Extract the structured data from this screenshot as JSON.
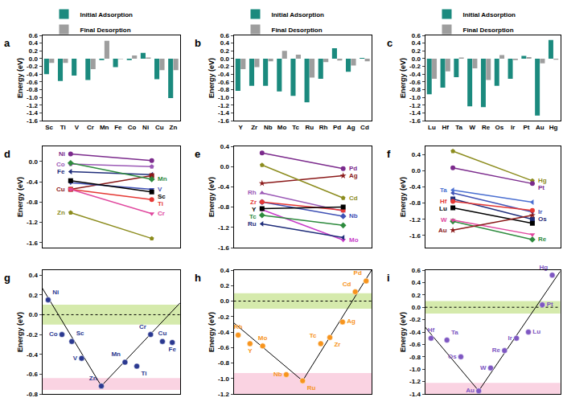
{
  "chart_data": [
    {
      "panel": "a",
      "type": "bar",
      "ylabel": "Energy (eV)",
      "legend": "top left",
      "categories": [
        "Sc",
        "Ti",
        "V",
        "Cr",
        "Mn",
        "Fe",
        "Co",
        "Ni",
        "Cu",
        "Zn"
      ],
      "series": [
        {
          "name": "Initial Adsorption",
          "color": "#1b8a7e",
          "values": [
            -0.4,
            -0.58,
            -0.44,
            -0.55,
            -0.04,
            -0.22,
            -0.04,
            0.15,
            -0.53,
            -1.02
          ]
        },
        {
          "name": "Final Desorption",
          "color": "#9e9e9e",
          "values": [
            -0.11,
            -0.11,
            0.0,
            -0.27,
            0.46,
            -0.01,
            0.08,
            0.03,
            -0.3,
            -0.3
          ]
        }
      ],
      "ylim": [
        -1.6,
        0.6
      ],
      "yticks": [
        -1.6,
        -1.4,
        -1.2,
        {
          "value": -1,
          "label": "-1.0"
        },
        -0.8,
        -0.6,
        -0.4,
        -0.2,
        {
          "value": 0,
          "label": "0.0"
        },
        0.2,
        0.4,
        0.6
      ]
    },
    {
      "panel": "b",
      "type": "bar",
      "ylabel": "Energy (eV)",
      "legend": "top left",
      "categories": [
        "Y",
        "Zr",
        "Nb",
        "Mo",
        "Tc",
        "Ru",
        "Rh",
        "Pd",
        "Ag",
        "Cd"
      ],
      "series": [
        {
          "name": "Initial Adsorption",
          "color": "#1b8a7e",
          "values": [
            -0.83,
            -0.7,
            -0.7,
            -0.85,
            -0.96,
            -1.13,
            -0.52,
            0.27,
            -0.34,
            0.02
          ]
        },
        {
          "name": "Final Desorption",
          "color": "#9e9e9e",
          "values": [
            -0.27,
            -0.22,
            -0.07,
            0.2,
            0.1,
            -0.49,
            -0.09,
            -0.05,
            -0.18,
            -0.07
          ]
        }
      ],
      "ylim": [
        -1.6,
        0.6
      ],
      "yticks": [
        -1.6,
        -1.4,
        -1.2,
        {
          "value": -1,
          "label": "-1.0"
        },
        -0.8,
        -0.6,
        -0.4,
        -0.2,
        {
          "value": 0,
          "label": "0.0"
        },
        0.2,
        0.4,
        0.6
      ]
    },
    {
      "panel": "c",
      "type": "bar",
      "ylabel": "Energy (eV)",
      "legend": "top left",
      "categories": [
        "Lu",
        "Hf",
        "Ta",
        "W",
        "Re",
        "Os",
        "Ir",
        "Pt",
        "Au",
        "Hg"
      ],
      "series": [
        {
          "name": "Initial Adsorption",
          "color": "#1b8a7e",
          "values": [
            -0.92,
            -0.75,
            -0.48,
            -1.23,
            -1.25,
            -0.7,
            -0.52,
            0.07,
            -1.47,
            0.48
          ]
        },
        {
          "name": "Final Desorption",
          "color": "#9e9e9e",
          "values": [
            -0.52,
            -0.33,
            0.03,
            -0.25,
            -0.55,
            0.09,
            -0.04,
            0.04,
            -0.12,
            -0.03
          ]
        }
      ],
      "ylim": [
        -1.6,
        0.6
      ],
      "yticks": [
        -1.6,
        -1.4,
        -1.2,
        {
          "value": -1,
          "label": "-1.0"
        },
        -0.8,
        -0.6,
        -0.4,
        -0.2,
        {
          "value": 0,
          "label": "0.0"
        },
        0.2,
        0.4,
        0.6
      ]
    },
    {
      "panel": "d",
      "type": "line",
      "ylabel": "Energy (eV)",
      "tick_labels": "y",
      "x": [
        0,
        1
      ],
      "xlim": [
        -0.35,
        1.35
      ],
      "ylim": [
        -1.7,
        0.3
      ],
      "yticks": [
        -1.6,
        -1.2,
        -0.8,
        -0.4,
        {
          "value": 0,
          "label": "0.0"
        }
      ],
      "series": [
        {
          "name": "Ni",
          "color": "#7b2a8c",
          "marker": "circle",
          "values": [
            0.15,
            0.02
          ]
        },
        {
          "name": "Co",
          "color": "#9b59b6",
          "marker": "pentagon",
          "values": [
            -0.05,
            -0.1
          ]
        },
        {
          "name": "Fe",
          "color": "#1f2d7a",
          "marker": "triangle-left",
          "values": [
            -0.2,
            -0.26
          ]
        },
        {
          "name": "Cu",
          "color": "#8b1a1a",
          "marker": "square",
          "values": [
            -0.55,
            -0.28
          ]
        },
        {
          "name": "Zn",
          "color": "#8c8c1e",
          "marker": "pentagon",
          "values": [
            -1.01,
            -1.52
          ]
        },
        {
          "name": "Mn",
          "color": "#2e8b3e",
          "marker": "diamond",
          "values": [
            -0.03,
            -0.35
          ]
        },
        {
          "name": "V",
          "color": "#3f51b5",
          "marker": "triangle-down",
          "values": [
            -0.42,
            -0.55
          ]
        },
        {
          "name": "Sc",
          "color": "#000000",
          "marker": "square",
          "values": [
            -0.38,
            -0.6
          ]
        },
        {
          "name": "Ti",
          "color": "#e53935",
          "marker": "circle",
          "values": [
            -0.55,
            -0.75
          ]
        },
        {
          "name": "Cr",
          "color": "#e0479e",
          "marker": "triangle-down",
          "values": [
            -0.55,
            -1.03
          ]
        }
      ]
    },
    {
      "panel": "e",
      "type": "line",
      "ylabel": "Energy (eV)",
      "tick_labels": "y",
      "x": [
        0,
        1
      ],
      "xlim": [
        -0.35,
        1.35
      ],
      "ylim": [
        -1.6,
        0.4
      ],
      "yticks": [
        -1.6,
        -1.2,
        -0.8,
        -0.4,
        {
          "value": 0,
          "label": "0.0"
        },
        0.4
      ],
      "series": [
        {
          "name": "Pd",
          "color": "#7b2a8c",
          "marker": "circle",
          "values": [
            0.27,
            -0.04
          ]
        },
        {
          "name": "Ag",
          "color": "#8b1a1a",
          "marker": "star",
          "values": [
            -0.33,
            -0.18
          ]
        },
        {
          "name": "Cd",
          "color": "#8c8c1e",
          "marker": "pentagon",
          "values": [
            0.03,
            -0.62
          ]
        },
        {
          "name": "Nb",
          "color": "#3f51b5",
          "marker": "diamond",
          "values": [
            -0.7,
            -0.98
          ]
        },
        {
          "name": "Mo",
          "color": "#c83cc8",
          "marker": "triangle-down",
          "values": [
            -0.85,
            -1.45
          ]
        },
        {
          "name": "Rh",
          "color": "#9b59b6",
          "marker": "triangle-up",
          "values": [
            -0.52,
            -0.88
          ]
        },
        {
          "name": "Zr",
          "color": "#e53935",
          "marker": "circle",
          "values": [
            -0.7,
            -0.86
          ]
        },
        {
          "name": "Y",
          "color": "#000000",
          "marker": "square",
          "values": [
            -0.83,
            -0.8
          ]
        },
        {
          "name": "Tc",
          "color": "#2e8b3e",
          "marker": "diamond",
          "values": [
            -0.96,
            -1.16
          ]
        },
        {
          "name": "Ru",
          "color": "#1f2d7a",
          "marker": "triangle-left",
          "values": [
            -1.13,
            -1.4
          ]
        }
      ]
    },
    {
      "panel": "f",
      "type": "line",
      "ylabel": "Energy (eV)",
      "tick_labels": "y",
      "x": [
        0,
        1
      ],
      "xlim": [
        -0.35,
        1.35
      ],
      "ylim": [
        -1.9,
        0.6
      ],
      "yticks": [
        -1.6,
        -1.2,
        -0.8,
        -0.4,
        {
          "value": 0,
          "label": "0.0"
        },
        0.4
      ],
      "series": [
        {
          "name": "Hg",
          "color": "#8c8c1e",
          "marker": "pentagon",
          "values": [
            0.48,
            -0.25
          ]
        },
        {
          "name": "Pt",
          "color": "#7b2a8c",
          "marker": "circle",
          "values": [
            0.07,
            -0.32
          ]
        },
        {
          "name": "Ir",
          "color": "#3f51b5",
          "marker": "triangle-left",
          "values": [
            -0.55,
            -1.02
          ]
        },
        {
          "name": "Os",
          "color": "#1f2d7a",
          "marker": "square",
          "values": [
            -0.7,
            -1.2
          ]
        },
        {
          "name": "Re",
          "color": "#2e8b3e",
          "marker": "diamond",
          "values": [
            -1.25,
            -1.7
          ]
        },
        {
          "name": "Ta",
          "color": "#4a6fd1",
          "marker": "triangle-left",
          "values": [
            -0.48,
            -0.78
          ]
        },
        {
          "name": "Hf",
          "color": "#e53935",
          "marker": "circle",
          "values": [
            -0.76,
            -0.98
          ]
        },
        {
          "name": "Lu",
          "color": "#000000",
          "marker": "square",
          "values": [
            -0.92,
            -1.3
          ]
        },
        {
          "name": "W",
          "color": "#e0479e",
          "marker": "triangle-down",
          "values": [
            -1.22,
            -1.58
          ]
        },
        {
          "name": "Au",
          "color": "#8b1a1a",
          "marker": "star",
          "values": [
            -1.47,
            -1.1
          ]
        }
      ]
    },
    {
      "panel": "g",
      "type": "scatter",
      "ylabel": "Energy (eV)",
      "tick_labels": "y",
      "xlim": [
        0,
        7
      ],
      "ylim": [
        -0.8,
        0.45
      ],
      "yticks": [
        -0.8,
        -0.6,
        -0.4,
        -0.2,
        {
          "value": 0,
          "label": "0.0"
        },
        0.2,
        0.4
      ],
      "points": {
        "labels": [
          "Ni",
          "Co",
          "Sc",
          "V",
          "Zn",
          "Mn",
          "Ti",
          "Cr",
          "Cu",
          "Fe"
        ],
        "x": [
          0.3,
          1.0,
          1.5,
          2.0,
          3.0,
          4.2,
          4.8,
          5.5,
          6.1,
          6.6
        ],
        "y": [
          0.15,
          -0.2,
          -0.27,
          -0.44,
          -0.72,
          -0.48,
          -0.52,
          -0.2,
          -0.27,
          -0.28
        ],
        "color": "#2b3990",
        "marker": "circle"
      },
      "fit": {
        "x": [
          0,
          3.0,
          7
        ],
        "y": [
          0.27,
          -0.72,
          0.12
        ],
        "color": "#000000"
      },
      "bands": [
        {
          "range": [
            -0.1,
            0.1
          ],
          "color": "#b9dc74"
        },
        {
          "range": [
            -0.76,
            -0.64
          ],
          "color": "#f7b6cf"
        }
      ],
      "reference_line": 0
    },
    {
      "panel": "h",
      "type": "scatter",
      "ylabel": "Energy (eV)",
      "tick_labels": "y",
      "xlim": [
        0,
        7.6
      ],
      "ylim": [
        -1.2,
        0.4
      ],
      "yticks": [
        -1.2,
        {
          "value": -1,
          "label": "-1.0"
        },
        -0.8,
        -0.6,
        -0.4,
        -0.2,
        {
          "value": 0,
          "label": "0.0"
        },
        0.2,
        0.4
      ],
      "points": {
        "labels": [
          "Rh",
          "Y",
          "Mo",
          "Nb",
          "Ru",
          "Tc",
          "Zr",
          "Ag",
          "Cd",
          "Pd"
        ],
        "x": [
          0.25,
          0.9,
          1.6,
          2.9,
          3.8,
          4.8,
          5.3,
          6.0,
          6.7,
          7.3
        ],
        "y": [
          -0.44,
          -0.55,
          -0.58,
          -0.95,
          -1.03,
          -0.55,
          -0.47,
          -0.27,
          0.12,
          0.26
        ],
        "color": "#f7941d",
        "marker": "circle"
      },
      "fit": {
        "x": [
          0,
          3.8,
          7.6
        ],
        "y": [
          -0.28,
          -1.03,
          0.4
        ],
        "color": "#000000"
      },
      "bands": [
        {
          "range": [
            -0.1,
            0.1
          ],
          "color": "#b9dc74"
        },
        {
          "range": [
            -1.2,
            -0.93
          ],
          "color": "#f7b6cf"
        }
      ],
      "reference_line": 0
    },
    {
      "panel": "i",
      "type": "scatter",
      "ylabel": "Energy (eV)",
      "tick_labels": "y",
      "xlim": [
        0,
        6.8
      ],
      "ylim": [
        -1.4,
        0.6
      ],
      "yticks": [
        -1.4,
        -1.2,
        {
          "value": -1,
          "label": "-1.0"
        },
        -0.8,
        -0.6,
        -0.4,
        -0.2,
        {
          "value": 0,
          "label": "0.0"
        },
        0.2,
        0.4,
        0.6
      ],
      "points": {
        "labels": [
          "Hf",
          "Ta",
          "Os",
          "Au",
          "W",
          "Re",
          "Ir",
          "Lu",
          "Pt",
          "Hg"
        ],
        "x": [
          0.3,
          1.1,
          1.8,
          2.7,
          3.3,
          4.0,
          4.6,
          5.2,
          5.9,
          6.4
        ],
        "y": [
          -0.5,
          -0.53,
          -0.8,
          -1.35,
          -0.98,
          -0.7,
          -0.5,
          -0.4,
          0.04,
          0.52
        ],
        "color": "#7e57c2",
        "marker": "circle"
      },
      "fit": {
        "x": [
          0,
          2.7,
          6.8
        ],
        "y": [
          -0.32,
          -1.35,
          0.58
        ],
        "color": "#000000"
      },
      "bands": [
        {
          "range": [
            -0.1,
            0.1
          ],
          "color": "#b9dc74"
        },
        {
          "range": [
            -1.4,
            -1.22
          ],
          "color": "#f7b6cf"
        }
      ],
      "reference_line": 0
    }
  ]
}
